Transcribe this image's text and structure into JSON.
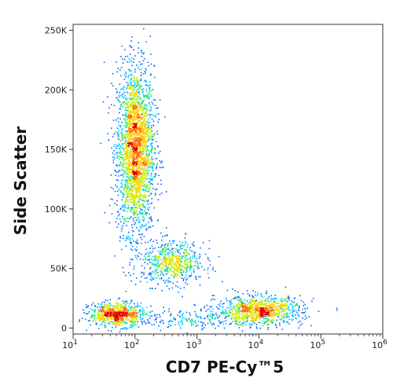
{
  "chart_data": {
    "type": "scatter",
    "title": "",
    "xlabel": "CD7 PE-Cy™5",
    "ylabel": "Side Scatter",
    "x_scale": "log",
    "xlim": [
      10,
      1000000
    ],
    "y_scale": "linear",
    "ylim": [
      -5000,
      255000
    ],
    "grid": false,
    "legend": "none",
    "x_ticks": [
      {
        "value": 10,
        "base": "10",
        "exp": "1"
      },
      {
        "value": 100,
        "base": "10",
        "exp": "2"
      },
      {
        "value": 1000,
        "base": "10",
        "exp": "3"
      },
      {
        "value": 10000,
        "base": "10",
        "exp": "4"
      },
      {
        "value": 100000,
        "base": "10",
        "exp": "5"
      },
      {
        "value": 1000000,
        "base": "10",
        "exp": "6"
      }
    ],
    "y_ticks": [
      {
        "value": 0,
        "label": "0"
      },
      {
        "value": 50000,
        "label": "50K"
      },
      {
        "value": 100000,
        "label": "100K"
      },
      {
        "value": 150000,
        "label": "150K"
      },
      {
        "value": 200000,
        "label": "200K"
      },
      {
        "value": 250000,
        "label": "250K"
      }
    ],
    "density_colormap": [
      "#0000cc",
      "#0066ff",
      "#00c8ff",
      "#30e070",
      "#c8f000",
      "#ffd000",
      "#ff7000",
      "#dd0000"
    ],
    "populations": [
      {
        "name": "",
        "cd7_center": 100,
        "ssc_center": 150000,
        "cd7_log_spread": 0.15,
        "ssc_spread": 35000,
        "points": 2600
      },
      {
        "name": "",
        "cd7_center": 400,
        "ssc_center": 55000,
        "cd7_log_spread": 0.25,
        "ssc_spread": 9000,
        "points": 650
      },
      {
        "name": "",
        "cd7_center": 50,
        "ssc_center": 12000,
        "cd7_log_spread": 0.22,
        "ssc_spread": 5000,
        "points": 750
      },
      {
        "name": "",
        "cd7_center": 10000,
        "ssc_center": 15000,
        "cd7_log_spread": 0.35,
        "ssc_spread": 6000,
        "points": 1000
      },
      {
        "name": "",
        "cd7_center": 1000,
        "ssc_center": 8000,
        "cd7_log_spread": 0.5,
        "ssc_spread": 4000,
        "points": 200
      }
    ]
  }
}
